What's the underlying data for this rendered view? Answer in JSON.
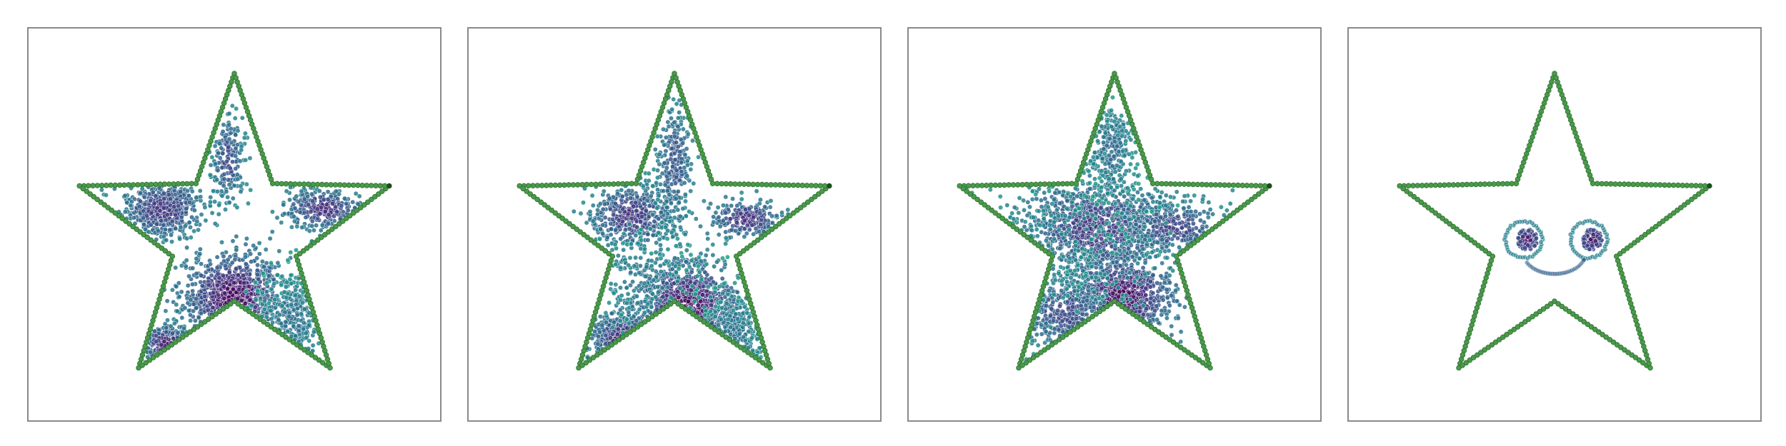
{
  "chart_data": [
    {
      "type": "scatter",
      "title": "",
      "xlabel": "",
      "ylabel": "",
      "xlim": [
        -1.0,
        1.0
      ],
      "ylim": [
        -1.0,
        1.0
      ],
      "grid": false,
      "axes_ticks": false,
      "boundary": {
        "name": "star-boundary",
        "shape": "five-point-star",
        "outer_radius": 0.95,
        "inner_radius": 0.38,
        "color": "#4a9a4a",
        "points_per_edge": 26
      },
      "colormap": "viridis",
      "clusters": [
        {
          "cx": 0.0,
          "cy": -0.35,
          "sx": 0.15,
          "sy": 0.13,
          "n": 700,
          "c": 0.95
        },
        {
          "cx": -0.42,
          "cy": 0.16,
          "sx": 0.13,
          "sy": 0.09,
          "n": 500,
          "c": 0.75
        },
        {
          "cx": 0.52,
          "cy": 0.16,
          "sx": 0.12,
          "sy": 0.06,
          "n": 250,
          "c": 0.8
        },
        {
          "cx": -0.4,
          "cy": -0.63,
          "sx": 0.07,
          "sy": 0.06,
          "n": 200,
          "c": 0.85
        },
        {
          "cx": -0.04,
          "cy": 0.45,
          "sx": 0.05,
          "sy": 0.15,
          "n": 180,
          "c": 0.65
        },
        {
          "cx": 0.34,
          "cy": -0.5,
          "sx": 0.13,
          "sy": 0.16,
          "n": 260,
          "c": 0.4
        }
      ]
    },
    {
      "type": "scatter",
      "title": "",
      "xlabel": "",
      "ylabel": "",
      "xlim": [
        -1.0,
        1.0
      ],
      "ylim": [
        -1.0,
        1.0
      ],
      "grid": false,
      "axes_ticks": false,
      "boundary": {
        "name": "star-boundary",
        "shape": "five-point-star",
        "outer_radius": 0.95,
        "inner_radius": 0.38,
        "color": "#4a9a4a",
        "points_per_edge": 26
      },
      "colormap": "viridis",
      "clusters": [
        {
          "cx": 0.08,
          "cy": -0.4,
          "sx": 0.15,
          "sy": 0.13,
          "n": 650,
          "c": 0.95
        },
        {
          "cx": -0.25,
          "cy": 0.12,
          "sx": 0.13,
          "sy": 0.1,
          "n": 450,
          "c": 0.75
        },
        {
          "cx": 0.42,
          "cy": 0.1,
          "sx": 0.11,
          "sy": 0.06,
          "n": 220,
          "c": 0.78
        },
        {
          "cx": -0.3,
          "cy": -0.6,
          "sx": 0.1,
          "sy": 0.08,
          "n": 260,
          "c": 0.82
        },
        {
          "cx": 0.0,
          "cy": 0.42,
          "sx": 0.06,
          "sy": 0.2,
          "n": 260,
          "c": 0.6
        },
        {
          "cx": 0.32,
          "cy": -0.6,
          "sx": 0.12,
          "sy": 0.15,
          "n": 200,
          "c": 0.4
        },
        {
          "cx": -0.2,
          "cy": -0.25,
          "sx": 0.18,
          "sy": 0.15,
          "n": 160,
          "c": 0.35
        }
      ]
    },
    {
      "type": "scatter",
      "title": "",
      "xlabel": "",
      "ylabel": "",
      "xlim": [
        -1.0,
        1.0
      ],
      "ylim": [
        -1.0,
        1.0
      ],
      "grid": false,
      "axes_ticks": false,
      "boundary": {
        "name": "star-boundary",
        "shape": "five-point-star",
        "outer_radius": 0.95,
        "inner_radius": 0.38,
        "color": "#4a9a4a",
        "points_per_edge": 26
      },
      "colormap": "viridis",
      "clusters": [
        {
          "cx": 0.05,
          "cy": -0.35,
          "sx": 0.15,
          "sy": 0.12,
          "n": 650,
          "c": 0.95
        },
        {
          "cx": -0.1,
          "cy": 0.05,
          "sx": 0.24,
          "sy": 0.15,
          "n": 900,
          "c": 0.75
        },
        {
          "cx": 0.35,
          "cy": 0.05,
          "sx": 0.15,
          "sy": 0.08,
          "n": 300,
          "c": 0.7
        },
        {
          "cx": -0.28,
          "cy": -0.45,
          "sx": 0.15,
          "sy": 0.12,
          "n": 300,
          "c": 0.65
        },
        {
          "cx": -0.02,
          "cy": 0.5,
          "sx": 0.07,
          "sy": 0.15,
          "n": 260,
          "c": 0.45
        },
        {
          "cx": -0.35,
          "cy": 0.0,
          "sx": 0.28,
          "sy": 0.18,
          "n": 200,
          "c": 0.3
        }
      ]
    },
    {
      "type": "scatter",
      "title": "",
      "xlabel": "",
      "ylabel": "",
      "xlim": [
        -1.0,
        1.0
      ],
      "ylim": [
        -1.0,
        1.0
      ],
      "grid": false,
      "axes_ticks": false,
      "boundary": {
        "name": "star-boundary",
        "shape": "five-point-star",
        "outer_radius": 0.95,
        "inner_radius": 0.38,
        "color": "#4a9a4a",
        "points_per_edge": 26
      },
      "colormap": "viridis",
      "smiley": {
        "left_eye": {
          "cx": -0.18,
          "cy": -0.02,
          "ring_radius": 0.11,
          "dot_radius": 0.06
        },
        "right_eye": {
          "cx": 0.2,
          "cy": -0.02,
          "ring_radius": 0.11,
          "dot_radius": 0.06
        },
        "mouth": {
          "cx": 0.0,
          "cy": -0.22,
          "rx": 0.18,
          "ry": 0.12
        }
      }
    }
  ]
}
